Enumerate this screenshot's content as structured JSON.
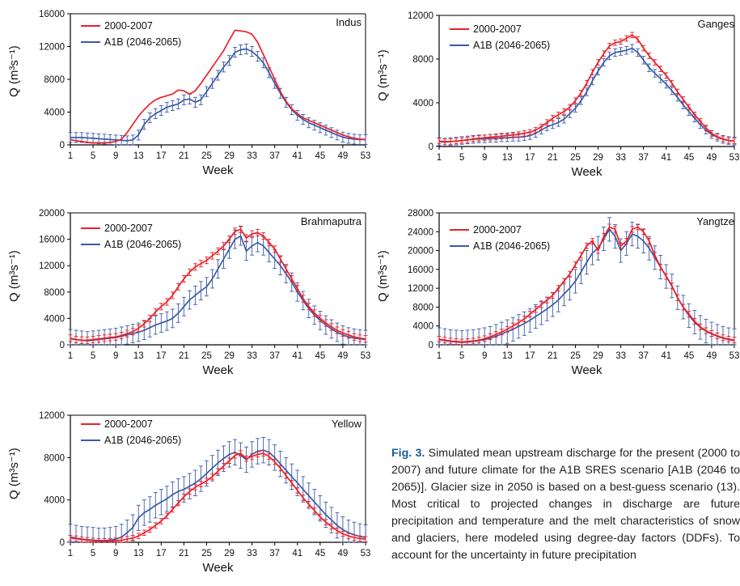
{
  "colors": {
    "present": "#e8202a",
    "future": "#3a5aa8",
    "axis": "#000000"
  },
  "legend": {
    "present": "2000-2007",
    "future": "A1B (2046-2065)"
  },
  "xlabel": "Week",
  "ylabel": "Q (m³s⁻¹)",
  "caption": {
    "fig": "Fig. 3.",
    "text": " Simulated mean upstream discharge for the present (2000 to 2007) and future climate for the A1B SRES scenario [A1B (2046 to 2065)]. Glacier size in 2050 is based on a best-guess scenario (13). Most critical to projected changes in discharge are future precipitation and temperature and the melt characteristics of snow and glaciers, here modeled using degree-day factors (DDFs). To account for the uncertainty in future precipitation"
  },
  "chart_data": [
    {
      "type": "line",
      "title": "Indus",
      "xlabel": "Week",
      "ylabel": "Q (m³s⁻¹)",
      "xlim": [
        1,
        53
      ],
      "ylim": [
        0,
        16000
      ],
      "xticks": [
        "1",
        "5",
        "9",
        "13",
        "17",
        "21",
        "25",
        "29",
        "33",
        "37",
        "41",
        "45",
        "49",
        "53"
      ],
      "yticks": [
        "0",
        "4000",
        "8000",
        "12000",
        "16000"
      ],
      "series": [
        {
          "name": "2000-2007",
          "values": [
            650,
            500,
            400,
            300,
            250,
            250,
            250,
            300,
            400,
            700,
            1500,
            2500,
            3500,
            4300,
            5000,
            5500,
            5800,
            6000,
            6200,
            6700,
            6600,
            6200,
            6600,
            7500,
            8500,
            9500,
            10500,
            11500,
            12800,
            14000,
            13900,
            13800,
            13500,
            12500,
            11000,
            9500,
            8000,
            6500,
            5300,
            4400,
            3800,
            3300,
            3000,
            2700,
            2400,
            2100,
            1800,
            1500,
            1200,
            1000,
            800,
            700,
            650
          ]
        },
        {
          "name": "A1B (2046-2065)",
          "err": 600,
          "values": [
            900,
            900,
            900,
            850,
            800,
            750,
            700,
            650,
            600,
            550,
            500,
            600,
            1200,
            2500,
            3300,
            3800,
            4200,
            4600,
            4800,
            5000,
            5500,
            5600,
            5200,
            5500,
            6500,
            7500,
            8500,
            9500,
            10300,
            11300,
            11600,
            11700,
            11400,
            10800,
            10000,
            8800,
            7500,
            6300,
            5200,
            4300,
            3600,
            3100,
            2700,
            2400,
            2100,
            1800,
            1500,
            1200,
            950,
            800,
            700,
            650,
            650
          ]
        }
      ]
    },
    {
      "type": "line",
      "title": "Ganges",
      "xlabel": "Week",
      "ylabel": "Q (m³s⁻¹)",
      "xlim": [
        1,
        53
      ],
      "ylim": [
        0,
        12000
      ],
      "xticks": [
        "1",
        "5",
        "9",
        "13",
        "17",
        "21",
        "25",
        "29",
        "33",
        "37",
        "41",
        "45",
        "49",
        "53"
      ],
      "yticks": [
        "0",
        "4000",
        "8000",
        "12000"
      ],
      "series": [
        {
          "name": "2000-2007",
          "err": 250,
          "values": [
            500,
            450,
            450,
            500,
            550,
            600,
            700,
            750,
            800,
            850,
            900,
            950,
            1000,
            1050,
            1100,
            1200,
            1300,
            1500,
            1800,
            2200,
            2600,
            2900,
            3200,
            3600,
            4200,
            4900,
            5800,
            6800,
            7700,
            8500,
            9200,
            9500,
            9600,
            9900,
            10200,
            9800,
            9000,
            8300,
            7700,
            7100,
            6500,
            5800,
            5000,
            4300,
            3600,
            2900,
            2300,
            1700,
            1200,
            900,
            700,
            550,
            500
          ]
        },
        {
          "name": "A1B (2046-2065)",
          "err": 350,
          "values": [
            450,
            400,
            450,
            500,
            550,
            600,
            650,
            700,
            700,
            750,
            750,
            800,
            800,
            850,
            850,
            900,
            1000,
            1200,
            1500,
            1800,
            2000,
            2200,
            2500,
            3000,
            3500,
            4200,
            5000,
            6000,
            6900,
            7700,
            8300,
            8600,
            8700,
            8800,
            9000,
            8600,
            7900,
            7200,
            6700,
            6200,
            5700,
            5100,
            4500,
            3800,
            3200,
            2600,
            2000,
            1500,
            1100,
            850,
            650,
            550,
            500
          ]
        }
      ]
    },
    {
      "type": "line",
      "title": "Brahmaputra",
      "xlabel": "Week",
      "ylabel": "Q (m³s⁻¹)",
      "xlim": [
        1,
        53
      ],
      "ylim": [
        0,
        20000
      ],
      "xticks": [
        "1",
        "5",
        "9",
        "13",
        "17",
        "21",
        "25",
        "29",
        "33",
        "37",
        "41",
        "45",
        "49",
        "53"
      ],
      "yticks": [
        "0",
        "4000",
        "8000",
        "12000",
        "16000",
        "20000"
      ],
      "series": [
        {
          "name": "2000-2007",
          "err": 500,
          "values": [
            1000,
            800,
            700,
            700,
            800,
            900,
            1000,
            1100,
            1200,
            1400,
            1700,
            2000,
            2500,
            3200,
            4000,
            5000,
            5800,
            6500,
            7500,
            8800,
            10000,
            11000,
            11800,
            12300,
            12800,
            13500,
            14200,
            15000,
            16000,
            17200,
            17500,
            16200,
            16800,
            17000,
            16500,
            15500,
            14500,
            13000,
            11500,
            10000,
            8500,
            7000,
            5800,
            4800,
            4000,
            3300,
            2700,
            2200,
            1800,
            1500,
            1200,
            1000,
            900
          ]
        },
        {
          "name": "A1B (2046-2065)",
          "err": 1400,
          "values": [
            900,
            800,
            700,
            600,
            700,
            800,
            900,
            1000,
            1100,
            1300,
            1500,
            1700,
            1900,
            2200,
            2600,
            3000,
            3300,
            3600,
            4000,
            4800,
            5800,
            6800,
            7500,
            8200,
            8800,
            10000,
            11500,
            13000,
            14500,
            16000,
            16500,
            14200,
            15000,
            15500,
            15000,
            14000,
            13000,
            12000,
            10800,
            9500,
            8000,
            6700,
            5500,
            4500,
            3700,
            3000,
            2400,
            1900,
            1500,
            1200,
            1000,
            900,
            800
          ]
        }
      ]
    },
    {
      "type": "line",
      "title": "Yangtze",
      "xlabel": "Week",
      "ylabel": "Q (m³s⁻¹)",
      "xlim": [
        1,
        53
      ],
      "ylim": [
        0,
        28000
      ],
      "xticks": [
        "1",
        "5",
        "9",
        "13",
        "17",
        "21",
        "25",
        "29",
        "33",
        "37",
        "41",
        "45",
        "49",
        "53"
      ],
      "yticks": [
        "0",
        "4000",
        "8000",
        "12000",
        "16000",
        "20000",
        "24000",
        "28000"
      ],
      "series": [
        {
          "name": "2000-2007",
          "err": 600,
          "values": [
            1200,
            1000,
            800,
            700,
            600,
            700,
            800,
            1000,
            1300,
            1700,
            2200,
            2700,
            3300,
            4000,
            4700,
            5500,
            6500,
            7500,
            8500,
            9500,
            10500,
            12000,
            13500,
            15000,
            17000,
            19000,
            21000,
            22000,
            20000,
            23000,
            25000,
            24500,
            21000,
            22000,
            24500,
            25000,
            24000,
            22000,
            19000,
            16500,
            14500,
            12500,
            10000,
            8000,
            6500,
            5000,
            3800,
            3000,
            2400,
            1900,
            1500,
            1200,
            1000
          ]
        },
        {
          "name": "A1B (2046-2065)",
          "err": 2500,
          "values": [
            1100,
            900,
            700,
            600,
            500,
            600,
            700,
            900,
            1100,
            1400,
            1800,
            2300,
            2800,
            3300,
            3900,
            4500,
            5200,
            6000,
            6800,
            7600,
            8500,
            9500,
            10800,
            12000,
            13500,
            15500,
            17500,
            19500,
            20500,
            22500,
            24500,
            23000,
            20000,
            21500,
            23500,
            23000,
            22000,
            20500,
            18500,
            16500,
            14500,
            12500,
            10000,
            8000,
            6200,
            4800,
            3700,
            2900,
            2300,
            1800,
            1400,
            1100,
            900
          ]
        }
      ]
    },
    {
      "type": "line",
      "title": "Yellow",
      "xlabel": "Week",
      "ylabel": "Q (m³s⁻¹)",
      "xlim": [
        1,
        53
      ],
      "ylim": [
        0,
        12000
      ],
      "xticks": [
        "1",
        "5",
        "9",
        "13",
        "17",
        "21",
        "25",
        "29",
        "33",
        "37",
        "41",
        "45",
        "49",
        "53"
      ],
      "yticks": [
        "0",
        "4000",
        "8000",
        "12000"
      ],
      "series": [
        {
          "name": "2000-2007",
          "err": 250,
          "values": [
            400,
            350,
            250,
            200,
            150,
            100,
            100,
            100,
            150,
            200,
            300,
            400,
            600,
            900,
            1200,
            1600,
            2000,
            2500,
            3100,
            3700,
            4300,
            4800,
            5200,
            5500,
            5800,
            6200,
            6700,
            7200,
            7700,
            8200,
            8400,
            7900,
            8100,
            8300,
            8400,
            8100,
            7600,
            7000,
            6300,
            5600,
            4900,
            4200,
            3600,
            3000,
            2400,
            1900,
            1500,
            1100,
            800,
            600,
            450,
            350,
            300
          ]
        },
        {
          "name": "A1B (2046-2065)",
          "err": 1200,
          "values": [
            500,
            400,
            300,
            250,
            200,
            150,
            150,
            200,
            300,
            500,
            900,
            1400,
            2300,
            2800,
            3100,
            3500,
            3800,
            4100,
            4500,
            4800,
            5000,
            5300,
            5600,
            6000,
            6500,
            7000,
            7500,
            7900,
            8300,
            8500,
            8200,
            7800,
            8300,
            8600,
            8700,
            8500,
            8000,
            7400,
            6800,
            6200,
            5600,
            5000,
            4400,
            3800,
            3200,
            2600,
            2100,
            1600,
            1200,
            900,
            700,
            550,
            450
          ]
        }
      ]
    }
  ]
}
